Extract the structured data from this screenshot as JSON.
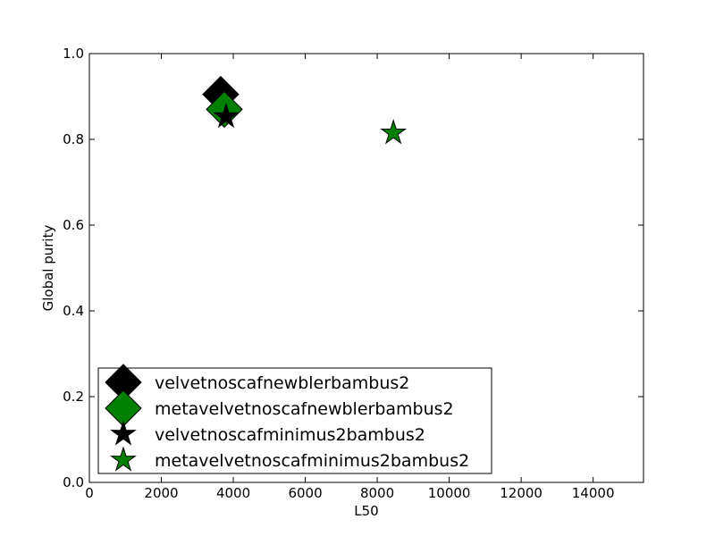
{
  "chart_data": {
    "type": "scatter",
    "xlabel": "L50",
    "ylabel": "Global purity",
    "xlim": [
      0,
      15400
    ],
    "ylim": [
      0,
      1.0
    ],
    "x_ticks": [
      0,
      2000,
      4000,
      6000,
      8000,
      10000,
      12000,
      14000
    ],
    "x_tick_labels": [
      "0",
      "2000",
      "4000",
      "6000",
      "8000",
      "10000",
      "12000",
      "14000"
    ],
    "y_ticks": [
      0,
      0.2,
      0.4,
      0.6,
      0.8,
      1.0
    ],
    "y_tick_labels": [
      "0.0",
      "0.2",
      "0.4",
      "0.6",
      "0.8",
      "1.0"
    ],
    "grid": false,
    "legend_position": "lower-left",
    "series": [
      {
        "name": "velvetnoscafnewblerbambus2",
        "marker": "diamond",
        "color": "#000000",
        "points": [
          [
            3650,
            0.905
          ]
        ]
      },
      {
        "name": "metavelvetnoscafnewblerbambus2",
        "marker": "diamond",
        "color": "#008000",
        "points": [
          [
            3750,
            0.87
          ]
        ]
      },
      {
        "name": "velvetnoscafminimus2bambus2",
        "marker": "star",
        "color": "#000000",
        "points": [
          [
            3800,
            0.853
          ]
        ]
      },
      {
        "name": "metavelvetnoscafminimus2bambus2",
        "marker": "star",
        "color": "#008000",
        "points": [
          [
            8450,
            0.815
          ]
        ]
      }
    ]
  }
}
